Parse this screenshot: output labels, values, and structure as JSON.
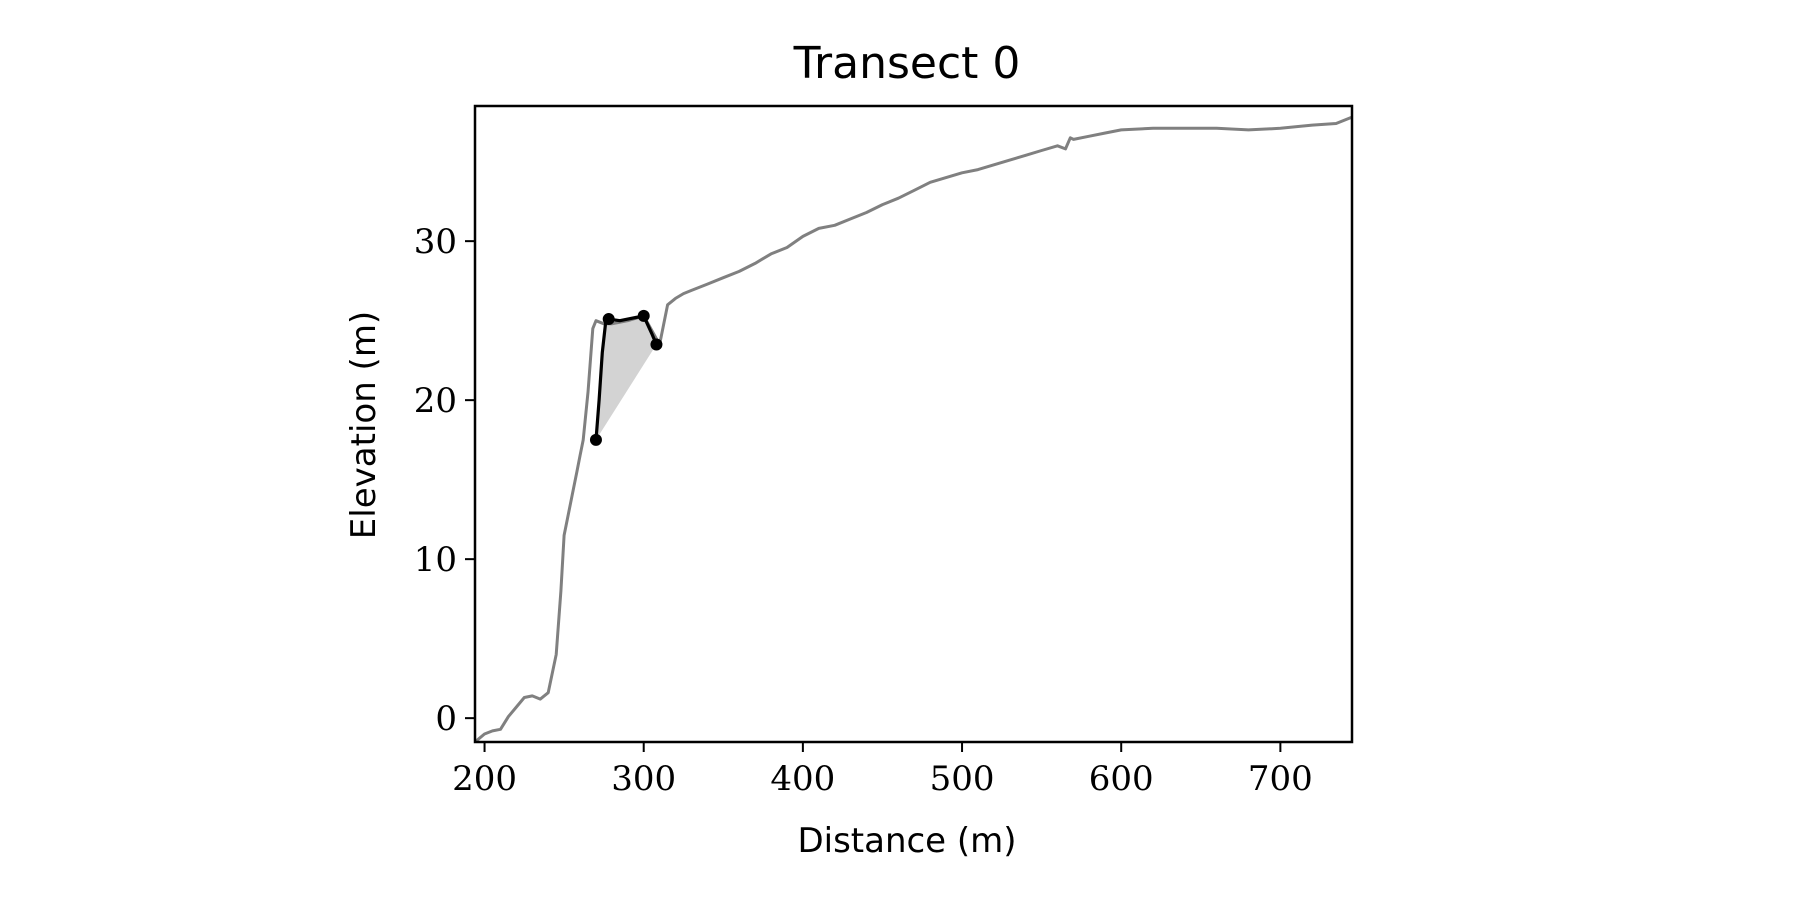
{
  "chart_data": {
    "type": "line",
    "title": "Transect 0",
    "xlabel": "Distance (m)",
    "ylabel": "Elevation (m)",
    "xlim": [
      194,
      745
    ],
    "ylim": [
      -1.5,
      38.5
    ],
    "xticks": [
      200,
      300,
      400,
      500,
      600,
      700
    ],
    "yticks": [
      0,
      10,
      20,
      30
    ],
    "grid": false,
    "series": [
      {
        "role": "profile",
        "color": "#808080",
        "x": [
          194,
          200,
          205,
          210,
          215,
          220,
          225,
          230,
          235,
          240,
          245,
          248,
          250,
          252,
          255,
          258,
          260,
          262,
          265,
          268,
          270,
          275,
          280,
          290,
          300,
          310,
          315,
          320,
          325,
          330,
          340,
          350,
          360,
          370,
          380,
          390,
          400,
          410,
          420,
          430,
          440,
          450,
          460,
          470,
          480,
          490,
          500,
          510,
          520,
          530,
          540,
          550,
          560,
          565,
          568,
          570,
          580,
          590,
          600,
          620,
          640,
          660,
          680,
          700,
          720,
          735,
          745
        ],
        "y": [
          -1.5,
          -1.0,
          -0.8,
          -0.7,
          0.1,
          0.7,
          1.3,
          1.4,
          1.2,
          1.6,
          4.0,
          8.0,
          11.5,
          12.5,
          14.0,
          15.5,
          16.5,
          17.5,
          20.5,
          24.5,
          25.0,
          24.8,
          24.8,
          25.0,
          25.3,
          23.5,
          26.0,
          26.4,
          26.7,
          26.9,
          27.3,
          27.7,
          28.1,
          28.6,
          29.2,
          29.6,
          30.3,
          30.8,
          31.0,
          31.4,
          31.8,
          32.3,
          32.7,
          33.2,
          33.7,
          34.0,
          34.3,
          34.5,
          34.8,
          35.1,
          35.4,
          35.7,
          36.0,
          35.8,
          36.5,
          36.4,
          36.6,
          36.8,
          37.0,
          37.1,
          37.1,
          37.1,
          37.0,
          37.1,
          37.3,
          37.4,
          37.8
        ]
      },
      {
        "role": "highlighted segment",
        "color": "#000000",
        "x": [
          270,
          272,
          274,
          276,
          278,
          285,
          290,
          295,
          300,
          305,
          308
        ],
        "y": [
          17.5,
          20.0,
          23.0,
          24.8,
          25.1,
          25.0,
          25.1,
          25.2,
          25.3,
          24.2,
          23.5
        ]
      }
    ],
    "markers": {
      "color": "#000000",
      "x": [
        270,
        278,
        300,
        308
      ],
      "y": [
        17.5,
        25.1,
        25.3,
        23.5
      ]
    },
    "shaded_region": {
      "color": "#d3d3d3",
      "x": [
        270,
        272,
        274,
        276,
        278,
        285,
        290,
        295,
        300,
        305,
        308
      ],
      "upper": [
        17.5,
        20.0,
        23.0,
        24.8,
        25.1,
        25.0,
        25.1,
        25.2,
        25.3,
        24.2,
        23.5
      ],
      "base": {
        "from": [
          270,
          17.5
        ],
        "to": [
          308,
          23.5
        ]
      }
    }
  }
}
